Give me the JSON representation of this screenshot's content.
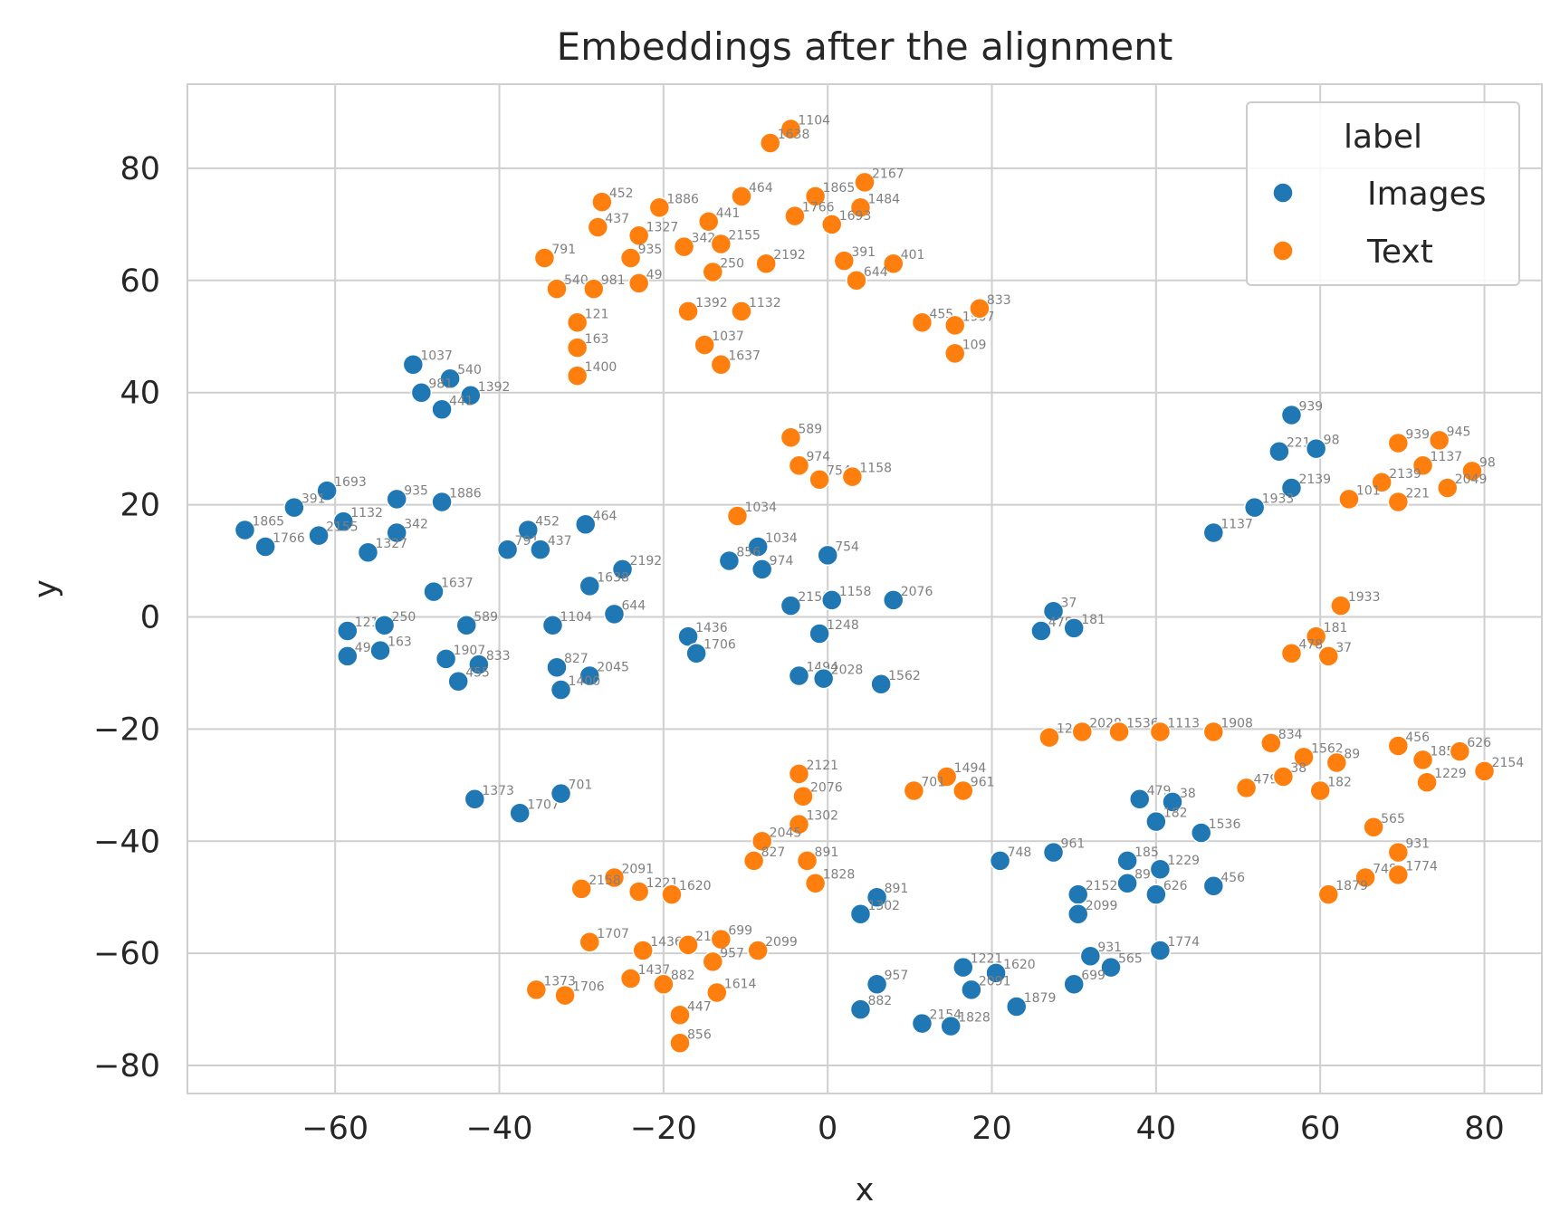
{
  "chart_data": {
    "type": "scatter",
    "title": "Embeddings after the alignment",
    "xlabel": "x",
    "ylabel": "y",
    "xlim": [
      -78,
      87
    ],
    "ylim": [
      -85,
      95
    ],
    "xticks": [
      -60,
      -40,
      -20,
      0,
      20,
      40,
      60,
      80
    ],
    "yticks": [
      -80,
      -60,
      -40,
      -20,
      0,
      20,
      40,
      60,
      80
    ],
    "grid": true,
    "legend": {
      "title": "label",
      "placement": "top-right"
    },
    "series": [
      {
        "name": "Images",
        "color": "#1f77b4",
        "points": [
          {
            "x": -50.5,
            "y": 45,
            "label": "1037"
          },
          {
            "x": -46,
            "y": 42.5,
            "label": "540"
          },
          {
            "x": -49.5,
            "y": 40,
            "label": "981"
          },
          {
            "x": -43.5,
            "y": 39.5,
            "label": "1392"
          },
          {
            "x": -47,
            "y": 37,
            "label": "441"
          },
          {
            "x": -61,
            "y": 22.5,
            "label": "1693"
          },
          {
            "x": -65,
            "y": 19.5,
            "label": "391"
          },
          {
            "x": -52.5,
            "y": 21,
            "label": "935"
          },
          {
            "x": -47,
            "y": 20.5,
            "label": "1886"
          },
          {
            "x": -71,
            "y": 15.5,
            "label": "1865"
          },
          {
            "x": -68.5,
            "y": 12.5,
            "label": "1766"
          },
          {
            "x": -59,
            "y": 17,
            "label": "1132"
          },
          {
            "x": -62,
            "y": 14.5,
            "label": "2155"
          },
          {
            "x": -52.5,
            "y": 15,
            "label": "342"
          },
          {
            "x": -56,
            "y": 11.5,
            "label": "1327"
          },
          {
            "x": -36.5,
            "y": 15.5,
            "label": "452"
          },
          {
            "x": -39,
            "y": 12,
            "label": "791"
          },
          {
            "x": -35,
            "y": 12,
            "label": "437"
          },
          {
            "x": -29.5,
            "y": 16.5,
            "label": "464"
          },
          {
            "x": -25,
            "y": 8.5,
            "label": "2192"
          },
          {
            "x": -29,
            "y": 5.5,
            "label": "1638"
          },
          {
            "x": -48,
            "y": 4.5,
            "label": "1637"
          },
          {
            "x": -58.5,
            "y": -2.5,
            "label": "121"
          },
          {
            "x": -54,
            "y": -1.5,
            "label": "250"
          },
          {
            "x": -44,
            "y": -1.5,
            "label": "589"
          },
          {
            "x": -58.5,
            "y": -7,
            "label": "49"
          },
          {
            "x": -54.5,
            "y": -6,
            "label": "163"
          },
          {
            "x": -46.5,
            "y": -7.5,
            "label": "1907"
          },
          {
            "x": -42.5,
            "y": -8.5,
            "label": "833"
          },
          {
            "x": -45,
            "y": -11.5,
            "label": "455"
          },
          {
            "x": -33.5,
            "y": -1.5,
            "label": "1104"
          },
          {
            "x": -26,
            "y": 0.5,
            "label": "644"
          },
          {
            "x": -33,
            "y": -9,
            "label": "827"
          },
          {
            "x": -29,
            "y": -10.5,
            "label": "2045"
          },
          {
            "x": -32.5,
            "y": -13,
            "label": "1400"
          },
          {
            "x": -8.5,
            "y": 12.5,
            "label": "1034"
          },
          {
            "x": -12,
            "y": 10,
            "label": "856"
          },
          {
            "x": -8,
            "y": 8.5,
            "label": "974"
          },
          {
            "x": 0,
            "y": 11,
            "label": "754"
          },
          {
            "x": -4.5,
            "y": 2,
            "label": "2158"
          },
          {
            "x": 0.5,
            "y": 3,
            "label": "1158"
          },
          {
            "x": 8,
            "y": 3,
            "label": "2076"
          },
          {
            "x": -17,
            "y": -3.5,
            "label": "1436"
          },
          {
            "x": -16,
            "y": -6.5,
            "label": "1706"
          },
          {
            "x": -1,
            "y": -3,
            "label": "1248"
          },
          {
            "x": -3.5,
            "y": -10.5,
            "label": "1494"
          },
          {
            "x": -0.5,
            "y": -11,
            "label": "2028"
          },
          {
            "x": 6.5,
            "y": -12,
            "label": "1562"
          },
          {
            "x": 27.5,
            "y": 1,
            "label": "37"
          },
          {
            "x": 26,
            "y": -2.5,
            "label": "478"
          },
          {
            "x": 30,
            "y": -2,
            "label": "181"
          },
          {
            "x": -43,
            "y": -32.5,
            "label": "1373"
          },
          {
            "x": -37.5,
            "y": -35,
            "label": "1707"
          },
          {
            "x": -32.5,
            "y": -31.5,
            "label": "701"
          },
          {
            "x": 56.5,
            "y": 36,
            "label": "939"
          },
          {
            "x": 55,
            "y": 29.5,
            "label": "221"
          },
          {
            "x": 59.5,
            "y": 30,
            "label": "98"
          },
          {
            "x": 56.5,
            "y": 23,
            "label": "2139"
          },
          {
            "x": 52,
            "y": 19.5,
            "label": "1933"
          },
          {
            "x": 47,
            "y": 15,
            "label": "1137"
          },
          {
            "x": 38,
            "y": -32.5,
            "label": "479"
          },
          {
            "x": 42,
            "y": -33,
            "label": "38"
          },
          {
            "x": 40,
            "y": -36.5,
            "label": "182"
          },
          {
            "x": 45.5,
            "y": -38.5,
            "label": "1536"
          },
          {
            "x": 21,
            "y": -43.5,
            "label": "748"
          },
          {
            "x": 27.5,
            "y": -42,
            "label": "961"
          },
          {
            "x": 36.5,
            "y": -43.5,
            "label": "185"
          },
          {
            "x": 40.5,
            "y": -45,
            "label": "1229"
          },
          {
            "x": 36.5,
            "y": -47.5,
            "label": "89"
          },
          {
            "x": 30.5,
            "y": -49.5,
            "label": "2152"
          },
          {
            "x": 40,
            "y": -49.5,
            "label": "626"
          },
          {
            "x": 47,
            "y": -48,
            "label": "456"
          },
          {
            "x": 30.5,
            "y": -53,
            "label": "2099"
          },
          {
            "x": 6,
            "y": -50,
            "label": "891"
          },
          {
            "x": 4,
            "y": -53,
            "label": "1302"
          },
          {
            "x": 32,
            "y": -60.5,
            "label": "931"
          },
          {
            "x": 34.5,
            "y": -62.5,
            "label": "565"
          },
          {
            "x": 40.5,
            "y": -59.5,
            "label": "1774"
          },
          {
            "x": 16.5,
            "y": -62.5,
            "label": "1221"
          },
          {
            "x": 20.5,
            "y": -63.5,
            "label": "1620"
          },
          {
            "x": 17.5,
            "y": -66.5,
            "label": "2091"
          },
          {
            "x": 30,
            "y": -65.5,
            "label": "699"
          },
          {
            "x": 6,
            "y": -65.5,
            "label": "957"
          },
          {
            "x": 4,
            "y": -70,
            "label": "882"
          },
          {
            "x": 23,
            "y": -69.5,
            "label": "1879"
          },
          {
            "x": 11.5,
            "y": -72.5,
            "label": "2154"
          },
          {
            "x": 15,
            "y": -73,
            "label": "1828"
          }
        ]
      },
      {
        "name": "Text",
        "color": "#ff7f0e",
        "points": [
          {
            "x": -4.5,
            "y": 87,
            "label": "1104"
          },
          {
            "x": -7,
            "y": 84.5,
            "label": "1638"
          },
          {
            "x": -27.5,
            "y": 74,
            "label": "452"
          },
          {
            "x": -20.5,
            "y": 73,
            "label": "1886"
          },
          {
            "x": -10.5,
            "y": 75,
            "label": "464"
          },
          {
            "x": -1.5,
            "y": 75,
            "label": "1865"
          },
          {
            "x": 4.5,
            "y": 77.5,
            "label": "2167"
          },
          {
            "x": 4,
            "y": 73,
            "label": "1484"
          },
          {
            "x": -28,
            "y": 69.5,
            "label": "437"
          },
          {
            "x": -14.5,
            "y": 70.5,
            "label": "441"
          },
          {
            "x": -4,
            "y": 71.5,
            "label": "1766"
          },
          {
            "x": 0.5,
            "y": 70,
            "label": "1693"
          },
          {
            "x": -23,
            "y": 68,
            "label": "1327"
          },
          {
            "x": -17.5,
            "y": 66,
            "label": "342"
          },
          {
            "x": -13,
            "y": 66.5,
            "label": "2155"
          },
          {
            "x": -34.5,
            "y": 64,
            "label": "791"
          },
          {
            "x": -24,
            "y": 64,
            "label": "935"
          },
          {
            "x": -7.5,
            "y": 63,
            "label": "2192"
          },
          {
            "x": 2,
            "y": 63.5,
            "label": "391"
          },
          {
            "x": 8,
            "y": 63,
            "label": "401"
          },
          {
            "x": -14,
            "y": 61.5,
            "label": "250"
          },
          {
            "x": 3.5,
            "y": 60,
            "label": "644"
          },
          {
            "x": -33,
            "y": 58.5,
            "label": "540"
          },
          {
            "x": -28.5,
            "y": 58.5,
            "label": "981"
          },
          {
            "x": -23,
            "y": 59.5,
            "label": "49"
          },
          {
            "x": -17,
            "y": 54.5,
            "label": "1392"
          },
          {
            "x": -10.5,
            "y": 54.5,
            "label": "1132"
          },
          {
            "x": -30.5,
            "y": 52.5,
            "label": "121"
          },
          {
            "x": 11.5,
            "y": 52.5,
            "label": "455"
          },
          {
            "x": 15.5,
            "y": 52,
            "label": "1907"
          },
          {
            "x": 18.5,
            "y": 55,
            "label": "833"
          },
          {
            "x": -30.5,
            "y": 48,
            "label": "163"
          },
          {
            "x": -15,
            "y": 48.5,
            "label": "1037"
          },
          {
            "x": -13,
            "y": 45,
            "label": "1637"
          },
          {
            "x": 15.5,
            "y": 47,
            "label": "109"
          },
          {
            "x": -30.5,
            "y": 43,
            "label": "1400"
          },
          {
            "x": -4.5,
            "y": 32,
            "label": "589"
          },
          {
            "x": -3.5,
            "y": 27,
            "label": "974"
          },
          {
            "x": -1,
            "y": 24.5,
            "label": "754"
          },
          {
            "x": 3,
            "y": 25,
            "label": "1158"
          },
          {
            "x": -11,
            "y": 18,
            "label": "1034"
          },
          {
            "x": 69.5,
            "y": 31,
            "label": "939"
          },
          {
            "x": 74.5,
            "y": 31.5,
            "label": "945"
          },
          {
            "x": 72.5,
            "y": 27,
            "label": "1137"
          },
          {
            "x": 78.5,
            "y": 26,
            "label": "98"
          },
          {
            "x": 67.5,
            "y": 24,
            "label": "2139"
          },
          {
            "x": 75.5,
            "y": 23,
            "label": "2049"
          },
          {
            "x": 63.5,
            "y": 21,
            "label": "101"
          },
          {
            "x": 69.5,
            "y": 20.5,
            "label": "221"
          },
          {
            "x": 62.5,
            "y": 2,
            "label": "1933"
          },
          {
            "x": 59.5,
            "y": -3.5,
            "label": "181"
          },
          {
            "x": 56.5,
            "y": -6.5,
            "label": "478"
          },
          {
            "x": 61,
            "y": -7,
            "label": "37"
          },
          {
            "x": 27,
            "y": -21.5,
            "label": "1248"
          },
          {
            "x": 31,
            "y": -20.5,
            "label": "2028"
          },
          {
            "x": 35.5,
            "y": -20.5,
            "label": "1536"
          },
          {
            "x": 40.5,
            "y": -20.5,
            "label": "1113"
          },
          {
            "x": 47,
            "y": -20.5,
            "label": "1908"
          },
          {
            "x": 54,
            "y": -22.5,
            "label": "834"
          },
          {
            "x": 58,
            "y": -25,
            "label": "1562"
          },
          {
            "x": 62,
            "y": -26,
            "label": "89"
          },
          {
            "x": 69.5,
            "y": -23,
            "label": "456"
          },
          {
            "x": 72.5,
            "y": -25.5,
            "label": "185"
          },
          {
            "x": 77,
            "y": -24,
            "label": "626"
          },
          {
            "x": 80,
            "y": -27.5,
            "label": "2154"
          },
          {
            "x": -3.5,
            "y": -28,
            "label": "2121"
          },
          {
            "x": -3,
            "y": -32,
            "label": "2076"
          },
          {
            "x": 14.5,
            "y": -28.5,
            "label": "1494"
          },
          {
            "x": 10.5,
            "y": -31,
            "label": "701"
          },
          {
            "x": 16.5,
            "y": -31,
            "label": "961"
          },
          {
            "x": 51,
            "y": -30.5,
            "label": "479"
          },
          {
            "x": 55.5,
            "y": -28.5,
            "label": "38"
          },
          {
            "x": 60,
            "y": -31,
            "label": "182"
          },
          {
            "x": 73,
            "y": -29.5,
            "label": "1229"
          },
          {
            "x": -3.5,
            "y": -37,
            "label": "1302"
          },
          {
            "x": -8,
            "y": -40,
            "label": "2045"
          },
          {
            "x": -9,
            "y": -43.5,
            "label": "827"
          },
          {
            "x": -2.5,
            "y": -43.5,
            "label": "891"
          },
          {
            "x": -1.5,
            "y": -47.5,
            "label": "1828"
          },
          {
            "x": 66.5,
            "y": -37.5,
            "label": "565"
          },
          {
            "x": 69.5,
            "y": -42,
            "label": "931"
          },
          {
            "x": 65.5,
            "y": -46.5,
            "label": "748"
          },
          {
            "x": 69.5,
            "y": -46,
            "label": "1774"
          },
          {
            "x": 61,
            "y": -49.5,
            "label": "1879"
          },
          {
            "x": -26,
            "y": -46.5,
            "label": "2091"
          },
          {
            "x": -30,
            "y": -48.5,
            "label": "2158"
          },
          {
            "x": -23,
            "y": -49,
            "label": "1221"
          },
          {
            "x": -19,
            "y": -49.5,
            "label": "1620"
          },
          {
            "x": -29,
            "y": -58,
            "label": "1707"
          },
          {
            "x": -22.5,
            "y": -59.5,
            "label": "1436"
          },
          {
            "x": -17,
            "y": -58.5,
            "label": "2152"
          },
          {
            "x": -13,
            "y": -57.5,
            "label": "699"
          },
          {
            "x": -8.5,
            "y": -59.5,
            "label": "2099"
          },
          {
            "x": -14,
            "y": -61.5,
            "label": "957"
          },
          {
            "x": -24,
            "y": -64.5,
            "label": "1437"
          },
          {
            "x": -20,
            "y": -65.5,
            "label": "882"
          },
          {
            "x": -13.5,
            "y": -67,
            "label": "1614"
          },
          {
            "x": -35.5,
            "y": -66.5,
            "label": "1373"
          },
          {
            "x": -32,
            "y": -67.5,
            "label": "1706"
          },
          {
            "x": -18,
            "y": -71,
            "label": "447"
          },
          {
            "x": -18,
            "y": -76,
            "label": "856"
          }
        ]
      }
    ]
  }
}
